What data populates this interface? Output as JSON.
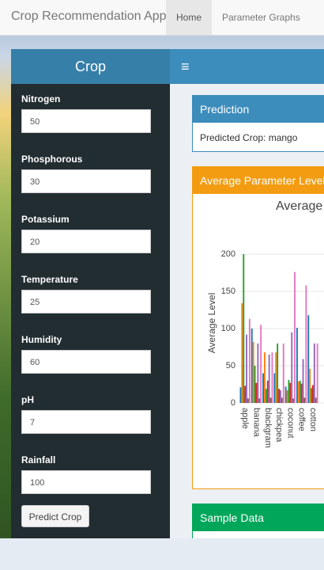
{
  "navbar": {
    "title": "Crop Recommendation App",
    "tabs": [
      "Home",
      "Parameter Graphs"
    ]
  },
  "sidebar": {
    "title": "Crop",
    "inputs": [
      {
        "label": "Nitrogen",
        "value": 50
      },
      {
        "label": "Phosphorous",
        "value": 30
      },
      {
        "label": "Potassium",
        "value": 20
      },
      {
        "label": "Temperature",
        "value": 25
      },
      {
        "label": "Humidity",
        "value": 60
      },
      {
        "label": "pH",
        "value": 7
      },
      {
        "label": "Rainfall",
        "value": 100
      }
    ],
    "button": "Predict Crop"
  },
  "boxes": {
    "prediction": {
      "title": "Prediction",
      "text": "Predicted Crop: mango"
    },
    "graph": {
      "title": "Average Parameter Levels"
    },
    "sample": {
      "title": "Sample Data"
    }
  },
  "chart_data": {
    "type": "bar",
    "title": "Average Parameter Levels",
    "y_label": "Average Level",
    "categories": [
      "apple",
      "banana",
      "blackgram",
      "chickpea",
      "coconut",
      "coffee",
      "cotton"
    ],
    "series": [
      {
        "color": "#1f77b4",
        "values": [
          21,
          100,
          40,
          40,
          22,
          101,
          118
        ]
      },
      {
        "color": "#ff7f0e",
        "values": [
          134,
          82,
          68,
          68,
          17,
          29,
          46
        ]
      },
      {
        "color": "#2ca02c",
        "values": [
          200,
          50,
          19,
          80,
          31,
          30,
          20
        ]
      },
      {
        "color": "#d62728",
        "values": [
          23,
          27,
          30,
          19,
          27,
          26,
          24
        ]
      },
      {
        "color": "#9467bd",
        "values": [
          92,
          80,
          65,
          17,
          95,
          59,
          80
        ]
      },
      {
        "color": "#8c564b",
        "values": [
          6,
          6,
          7,
          7,
          6,
          7,
          7
        ]
      },
      {
        "color": "#e377c2",
        "values": [
          113,
          105,
          68,
          80,
          176,
          158,
          80
        ]
      }
    ],
    "ylim": [
      0,
      215
    ],
    "yticks": [
      0,
      50,
      100,
      150,
      200
    ],
    "grid": true
  }
}
